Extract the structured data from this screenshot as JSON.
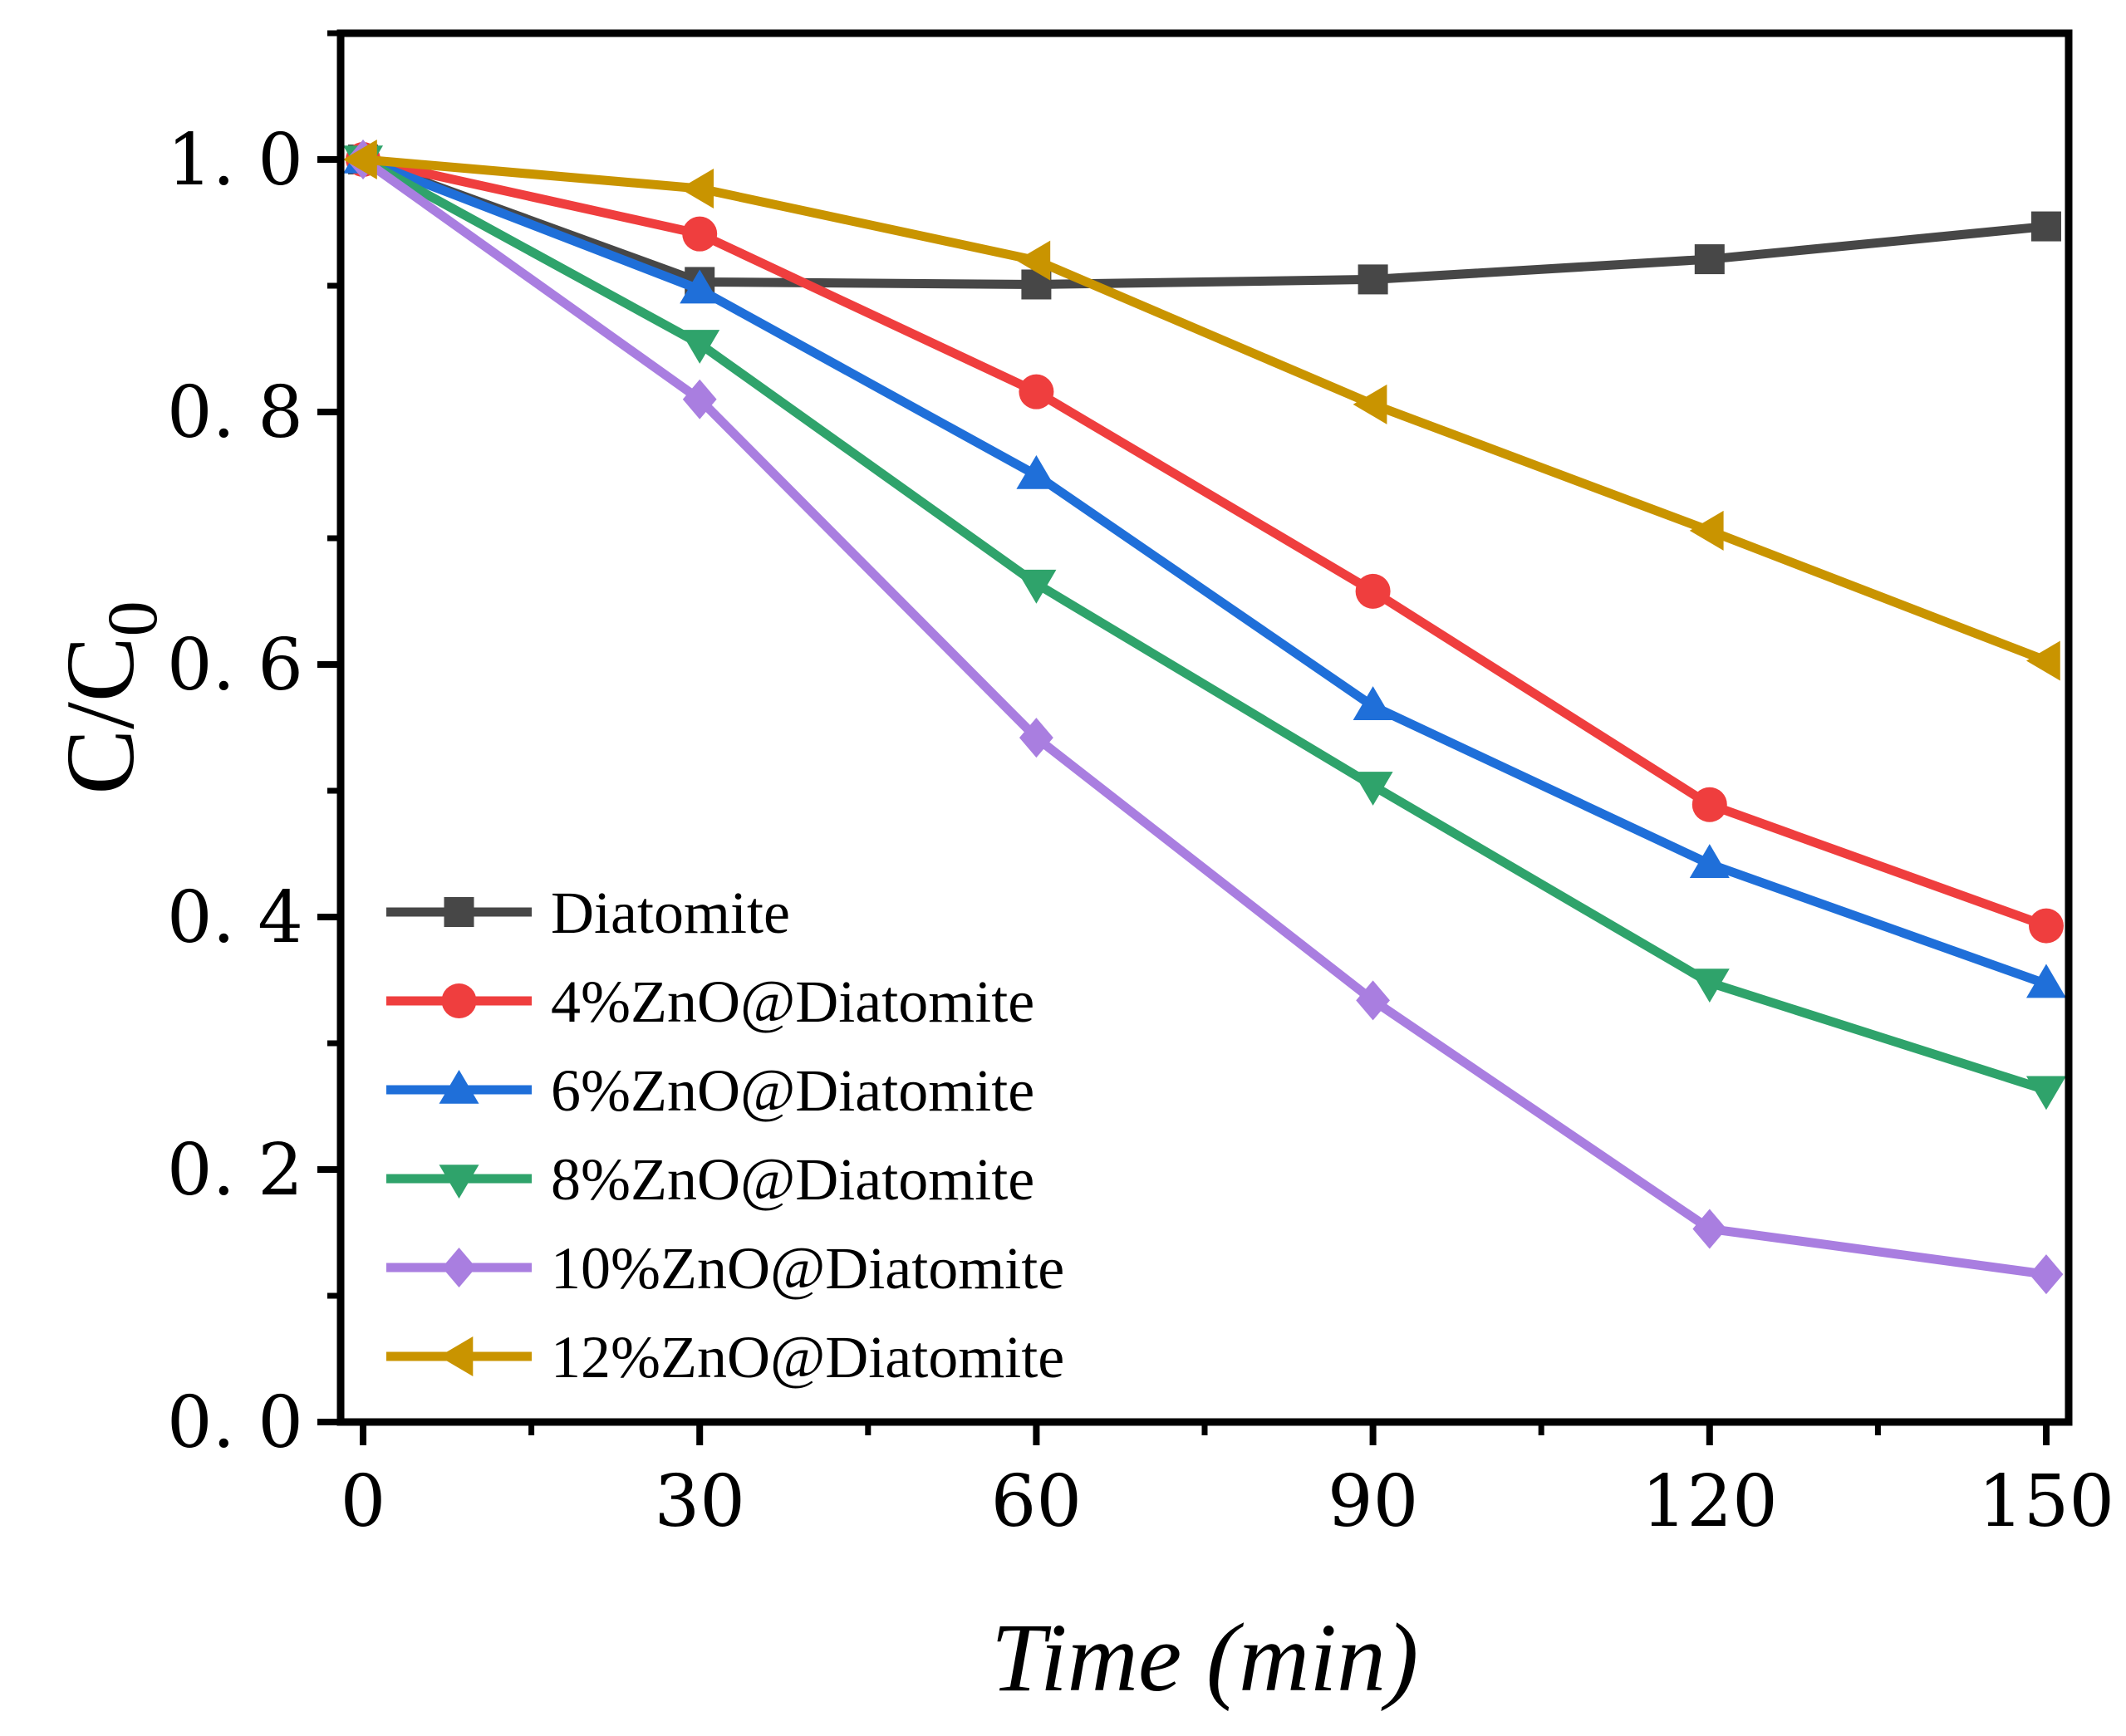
{
  "chart_data": {
    "type": "line",
    "title": "",
    "xlabel": "Time (min)",
    "ylabel": {
      "main": "C/C",
      "subscript": "0"
    },
    "xlim": [
      -2,
      152
    ],
    "ylim": [
      0,
      1.1
    ],
    "xticks": [
      0,
      30,
      60,
      90,
      120,
      150
    ],
    "xtick_labels": [
      "0",
      "30",
      "60",
      "90",
      "120",
      "150"
    ],
    "yticks": [
      0.0,
      0.2,
      0.4,
      0.6,
      0.8,
      1.0
    ],
    "ytick_labels": [
      "0. 0",
      "0. 2",
      "0. 4",
      "0. 6",
      "0. 8",
      "1. 0"
    ],
    "grid": false,
    "legend_position": "bottom-left",
    "x": [
      0,
      30,
      60,
      90,
      120,
      150
    ],
    "series": [
      {
        "name": "Diatomite",
        "color": "#474747",
        "marker": "square",
        "values": [
          1.0,
          0.903,
          0.901,
          0.905,
          0.921,
          0.947
        ]
      },
      {
        "name": "4%ZnO@Diatomite",
        "color": "#ef3e3e",
        "marker": "circle",
        "values": [
          1.0,
          0.941,
          0.816,
          0.658,
          0.489,
          0.393
        ]
      },
      {
        "name": "6%ZnO@Diatomite",
        "color": "#1f6fd9",
        "marker": "triangle-up",
        "values": [
          1.0,
          0.897,
          0.75,
          0.567,
          0.442,
          0.347
        ]
      },
      {
        "name": "8%ZnO@Diatomite",
        "color": "#2fa36b",
        "marker": "triangle-down",
        "values": [
          1.0,
          0.854,
          0.664,
          0.504,
          0.348,
          0.263
        ]
      },
      {
        "name": "10%ZnO@Diatomite",
        "color": "#a97ee0",
        "marker": "diamond",
        "values": [
          1.0,
          0.81,
          0.542,
          0.334,
          0.153,
          0.117
        ]
      },
      {
        "name": "12%ZnO@Diatomite",
        "color": "#c99400",
        "marker": "triangle-left",
        "values": [
          1.0,
          0.977,
          0.92,
          0.806,
          0.706,
          0.603
        ]
      }
    ]
  }
}
